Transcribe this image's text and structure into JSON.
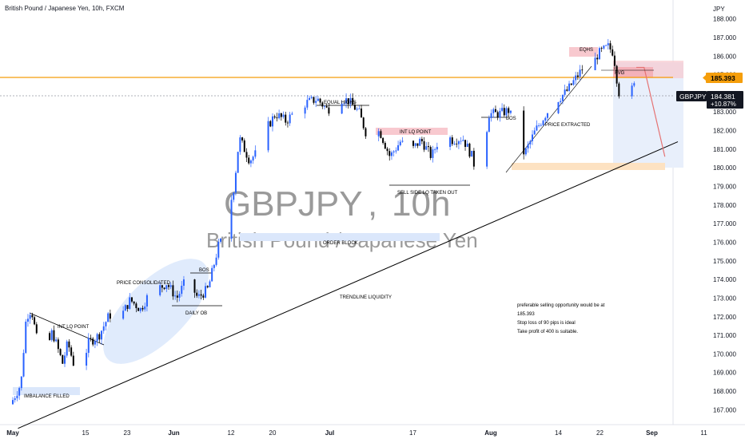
{
  "header": {
    "title": "British Pound / Japanese Yen, 10h, FXCM",
    "currency": "JPY"
  },
  "watermark": {
    "symbol": "GBPJPY",
    "separator": ",",
    "interval": "10h",
    "name": "British Pound / Japanese Yen"
  },
  "price_badges": {
    "level": "185.393",
    "symbol": "GBPJPY",
    "last": "184.381",
    "change": "+10.87%"
  },
  "colors": {
    "up": "#2962ff",
    "down": "#000000",
    "level_line": "#f59e0b",
    "zone_blue": "#dbe7fb",
    "zone_red": "#f8c9cf",
    "zone_orange": "#fde2c2",
    "target_box": "#e8effb"
  },
  "annotations": {
    "eqhs": "EQHS",
    "fvg": "FVG",
    "equal_highs": "EQUAL HIGHS",
    "int_lq_top": "INT LQ POINT",
    "bos_aug": "BOS",
    "price_extracted": "PRICE EXTRACTED",
    "sell_side": "SELL SIDE LQ TAKEN OUT",
    "order_block": "ORDER BLOCK",
    "bos_jun": "BOS",
    "price_consolidated": "PRICE CONSOLIDATED",
    "daily_ob": "DAILY OB",
    "int_lq_may": "INT LQ POINT",
    "imbalance": "IMBALANCE FILLED",
    "trendline": "TRENDLINE LIQUIDITY"
  },
  "notes": [
    "preferable selling opportunity would be at",
    "185.393",
    "Stop loss of 90 pips is ideal",
    "Take profit of 400 is suitable."
  ],
  "chart_data": {
    "type": "candlestick",
    "title": "British Pound / Japanese Yen, 10h, FXCM",
    "y_ticks": [
      167,
      168,
      169,
      170,
      171,
      172,
      173,
      174,
      175,
      176,
      177,
      178,
      179,
      180,
      181,
      182,
      183,
      184,
      185,
      186,
      187,
      188
    ],
    "y_tick_labels": [
      "167.000",
      "168.000",
      "169.000",
      "170.000",
      "171.000",
      "172.000",
      "173.000",
      "174.000",
      "175.000",
      "176.000",
      "177.000",
      "178.000",
      "179.000",
      "180.000",
      "181.000",
      "182.000",
      "183.000",
      "184.000",
      "185.000",
      "186.000",
      "187.000",
      "188.000"
    ],
    "ylim": [
      166.2,
      188.8
    ],
    "x_ticks": [
      {
        "label": "May",
        "day": 0
      },
      {
        "label": "15",
        "day": 14
      },
      {
        "label": "23",
        "day": 22
      },
      {
        "label": "Jun",
        "day": 31
      },
      {
        "label": "12",
        "day": 42
      },
      {
        "label": "20",
        "day": 50
      },
      {
        "label": "Jul",
        "day": 61
      },
      {
        "label": "17",
        "day": 77
      },
      {
        "label": "Aug",
        "day": 92
      },
      {
        "label": "14",
        "day": 105
      },
      {
        "label": "22",
        "day": 113
      },
      {
        "label": "Sep",
        "day": 123
      },
      {
        "label": "11",
        "day": 133
      }
    ],
    "key_level": 185.393,
    "last_price": 184.381,
    "series_path": [
      [
        0,
        167.3
      ],
      [
        2,
        168.4
      ],
      [
        3,
        172.0
      ],
      [
        4,
        172.4
      ],
      [
        6,
        169.3
      ],
      [
        8,
        171.2
      ],
      [
        10,
        169.5
      ],
      [
        11,
        170.6
      ],
      [
        13,
        168.6
      ],
      [
        15,
        170.6
      ],
      [
        17,
        171.0
      ],
      [
        19,
        172.1
      ],
      [
        21,
        171.9
      ],
      [
        23,
        172.9
      ],
      [
        25,
        172.4
      ],
      [
        27,
        173.4
      ],
      [
        29,
        173.6
      ],
      [
        30,
        173.8
      ],
      [
        32,
        173.0
      ],
      [
        34,
        174.1
      ],
      [
        36,
        173.0
      ],
      [
        38,
        173.5
      ],
      [
        40,
        175.8
      ],
      [
        41,
        176.3
      ],
      [
        43,
        179.0
      ],
      [
        44,
        181.6
      ],
      [
        46,
        180.4
      ],
      [
        48,
        181.0
      ],
      [
        49,
        182.0
      ],
      [
        51,
        182.9
      ],
      [
        53,
        182.5
      ],
      [
        55,
        183.1
      ],
      [
        57,
        183.5
      ],
      [
        59,
        183.7
      ],
      [
        61,
        183.1
      ],
      [
        63,
        183.8
      ],
      [
        65,
        183.6
      ],
      [
        67,
        183.0
      ],
      [
        69,
        181.4
      ],
      [
        71,
        182.0
      ],
      [
        73,
        180.6
      ],
      [
        75,
        181.4
      ],
      [
        77,
        180.9
      ],
      [
        79,
        181.5
      ],
      [
        81,
        180.6
      ],
      [
        83,
        181.9
      ],
      [
        85,
        181.5
      ],
      [
        87,
        181.6
      ],
      [
        89,
        180.5
      ],
      [
        90,
        178.8
      ],
      [
        91,
        180.6
      ],
      [
        92,
        182.9
      ],
      [
        94,
        182.9
      ],
      [
        96,
        183.1
      ],
      [
        98,
        180.9
      ],
      [
        99,
        180.8
      ],
      [
        101,
        182.0
      ],
      [
        103,
        182.9
      ],
      [
        105,
        183.6
      ],
      [
        107,
        184.1
      ],
      [
        108,
        184.5
      ],
      [
        110,
        185.3
      ],
      [
        111,
        186.2
      ],
      [
        112,
        185.5
      ],
      [
        113,
        186.1
      ],
      [
        115,
        186.5
      ],
      [
        116,
        186.2
      ],
      [
        117,
        184.1
      ],
      [
        118,
        183.5
      ],
      [
        119,
        183.9
      ],
      [
        120,
        184.4
      ]
    ],
    "trendline": [
      [
        1,
        166.0
      ],
      [
        128,
        181.4
      ]
    ],
    "projection": [
      [
        120,
        185.393
      ],
      [
        121.5,
        185.393
      ],
      [
        125.5,
        180.6
      ]
    ]
  }
}
